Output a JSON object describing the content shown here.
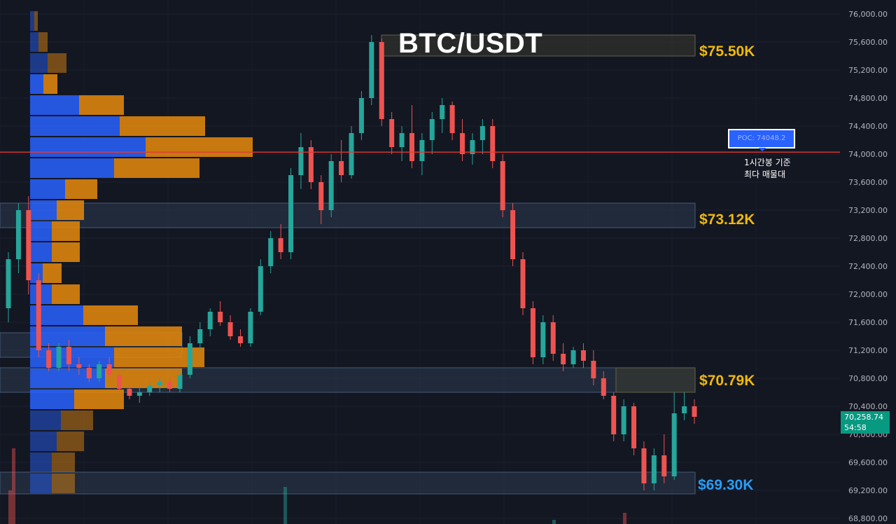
{
  "chart_data": {
    "type": "candlestick",
    "title": "BTC/USDT",
    "ylim": [
      68800,
      76000
    ],
    "y_ticks": [
      "76,000.00",
      "75,600.00",
      "75,200.00",
      "74,800.00",
      "74,400.00",
      "74,000.00",
      "73,600.00",
      "73,200.00",
      "72,800.00",
      "72,400.00",
      "72,000.00",
      "71,600.00",
      "71,200.00",
      "70,800.00",
      "70,400.00",
      "70,000.00",
      "69,600.00",
      "69,200.00",
      "68,800.00"
    ],
    "candles": [
      [
        71800,
        72600,
        71600,
        72500
      ],
      [
        72500,
        73300,
        72300,
        73200
      ],
      [
        73200,
        73400,
        72000,
        72200
      ],
      [
        72200,
        72300,
        71100,
        71200
      ],
      [
        71200,
        71300,
        70900,
        70950
      ],
      [
        70950,
        71300,
        70900,
        71250
      ],
      [
        71250,
        71350,
        70900,
        71000
      ],
      [
        71000,
        71100,
        70850,
        70950
      ],
      [
        70950,
        71000,
        70750,
        70800
      ],
      [
        70800,
        71050,
        70750,
        71000
      ],
      [
        71000,
        71100,
        70800,
        70850
      ],
      [
        70850,
        70900,
        70600,
        70650
      ],
      [
        70650,
        70700,
        70500,
        70550
      ],
      [
        70550,
        70700,
        70450,
        70600
      ],
      [
        70600,
        70750,
        70550,
        70700
      ],
      [
        70700,
        70800,
        70600,
        70750
      ],
      [
        70750,
        70800,
        70600,
        70650
      ],
      [
        70650,
        70900,
        70600,
        70850
      ],
      [
        70850,
        71400,
        70800,
        71300
      ],
      [
        71300,
        71600,
        71200,
        71500
      ],
      [
        71500,
        71800,
        71400,
        71750
      ],
      [
        71750,
        71900,
        71550,
        71600
      ],
      [
        71600,
        71700,
        71350,
        71400
      ],
      [
        71400,
        71500,
        71250,
        71300
      ],
      [
        71300,
        71800,
        71250,
        71750
      ],
      [
        71750,
        72500,
        71700,
        72400
      ],
      [
        72400,
        72900,
        72300,
        72800
      ],
      [
        72800,
        73000,
        72500,
        72600
      ],
      [
        72600,
        73800,
        72500,
        73700
      ],
      [
        73700,
        74300,
        73500,
        74100
      ],
      [
        74100,
        74200,
        73500,
        73600
      ],
      [
        73600,
        73700,
        73000,
        73200
      ],
      [
        73200,
        74000,
        73100,
        73900
      ],
      [
        73900,
        74200,
        73600,
        73700
      ],
      [
        73700,
        74400,
        73650,
        74300
      ],
      [
        74300,
        74900,
        74200,
        74800
      ],
      [
        74800,
        75700,
        74700,
        75600
      ],
      [
        75600,
        75650,
        74400,
        74500
      ],
      [
        74500,
        74600,
        74000,
        74100
      ],
      [
        74100,
        74400,
        73900,
        74300
      ],
      [
        74300,
        74700,
        73800,
        73900
      ],
      [
        73900,
        74300,
        73700,
        74200
      ],
      [
        74200,
        74600,
        74000,
        74500
      ],
      [
        74500,
        74800,
        74300,
        74700
      ],
      [
        74700,
        74750,
        74200,
        74300
      ],
      [
        74300,
        74500,
        73900,
        74000
      ],
      [
        74000,
        74300,
        73850,
        74200
      ],
      [
        74200,
        74500,
        74000,
        74400
      ],
      [
        74400,
        74500,
        73800,
        73900
      ],
      [
        73900,
        74000,
        73100,
        73200
      ],
      [
        73200,
        73300,
        72400,
        72500
      ],
      [
        72500,
        72600,
        71700,
        71800
      ],
      [
        71800,
        71900,
        71000,
        71100
      ],
      [
        71100,
        71700,
        71000,
        71600
      ],
      [
        71600,
        71700,
        71050,
        71150
      ],
      [
        71150,
        71300,
        70900,
        71000
      ],
      [
        71000,
        71250,
        70950,
        71200
      ],
      [
        71200,
        71300,
        70950,
        71050
      ],
      [
        71050,
        71200,
        70700,
        70800
      ],
      [
        70800,
        70900,
        70500,
        70550
      ],
      [
        70550,
        70600,
        69900,
        70000
      ],
      [
        70000,
        70500,
        69900,
        70400
      ],
      [
        70400,
        70450,
        69700,
        69800
      ],
      [
        69800,
        69900,
        69200,
        69300
      ],
      [
        69300,
        69800,
        69200,
        69700
      ],
      [
        69700,
        70000,
        69300,
        69400
      ],
      [
        69400,
        70600,
        69350,
        70300
      ],
      [
        70300,
        70600,
        70200,
        70400
      ],
      [
        70400,
        70500,
        70150,
        70250
      ]
    ],
    "volume_profile": [
      {
        "price": 75900,
        "buy": 6,
        "sell": 5
      },
      {
        "price": 75600,
        "buy": 12,
        "sell": 13
      },
      {
        "price": 75300,
        "buy": 25,
        "sell": 27
      },
      {
        "price": 75000,
        "buy": 19,
        "sell": 20
      },
      {
        "price": 74700,
        "buy": 70,
        "sell": 64
      },
      {
        "price": 74400,
        "buy": 128,
        "sell": 122
      },
      {
        "price": 74100,
        "buy": 165,
        "sell": 153
      },
      {
        "price": 73800,
        "buy": 120,
        "sell": 122
      },
      {
        "price": 73500,
        "buy": 50,
        "sell": 46
      },
      {
        "price": 73200,
        "buy": 38,
        "sell": 39
      },
      {
        "price": 72900,
        "buy": 31,
        "sell": 40
      },
      {
        "price": 72600,
        "buy": 31,
        "sell": 40
      },
      {
        "price": 72300,
        "buy": 18,
        "sell": 27
      },
      {
        "price": 72000,
        "buy": 31,
        "sell": 40
      },
      {
        "price": 71700,
        "buy": 76,
        "sell": 78
      },
      {
        "price": 71400,
        "buy": 107,
        "sell": 110
      },
      {
        "price": 71100,
        "buy": 120,
        "sell": 129
      },
      {
        "price": 70800,
        "buy": 107,
        "sell": 110
      },
      {
        "price": 70500,
        "buy": 63,
        "sell": 71
      },
      {
        "price": 70200,
        "buy": 44,
        "sell": 46
      },
      {
        "price": 69900,
        "buy": 38,
        "sell": 39
      },
      {
        "price": 69600,
        "buy": 31,
        "sell": 33
      },
      {
        "price": 69300,
        "buy": 31,
        "sell": 33
      }
    ],
    "levels": [
      {
        "price": "$75.50K",
        "color": "#f0b90b"
      },
      {
        "price": "$73.12K",
        "color": "#f0b90b"
      },
      {
        "price": "$70.79K",
        "color": "#f0b90b"
      },
      {
        "price": "$69.30K",
        "color": "#2a9df4"
      }
    ],
    "poc": {
      "label": "POC: 74048.2",
      "value": 74048.2,
      "note": "1시간봉 기준\n최다 매물대",
      "line_color": "#e53935"
    },
    "last_price": {
      "value": "70,258.74",
      "countdown": "54:58"
    },
    "colors": {
      "up": "#26a69a",
      "down": "#ef5350",
      "bg": "#131722",
      "vp_buy": "#2962ff",
      "vp_sell": "#e8890c"
    }
  }
}
